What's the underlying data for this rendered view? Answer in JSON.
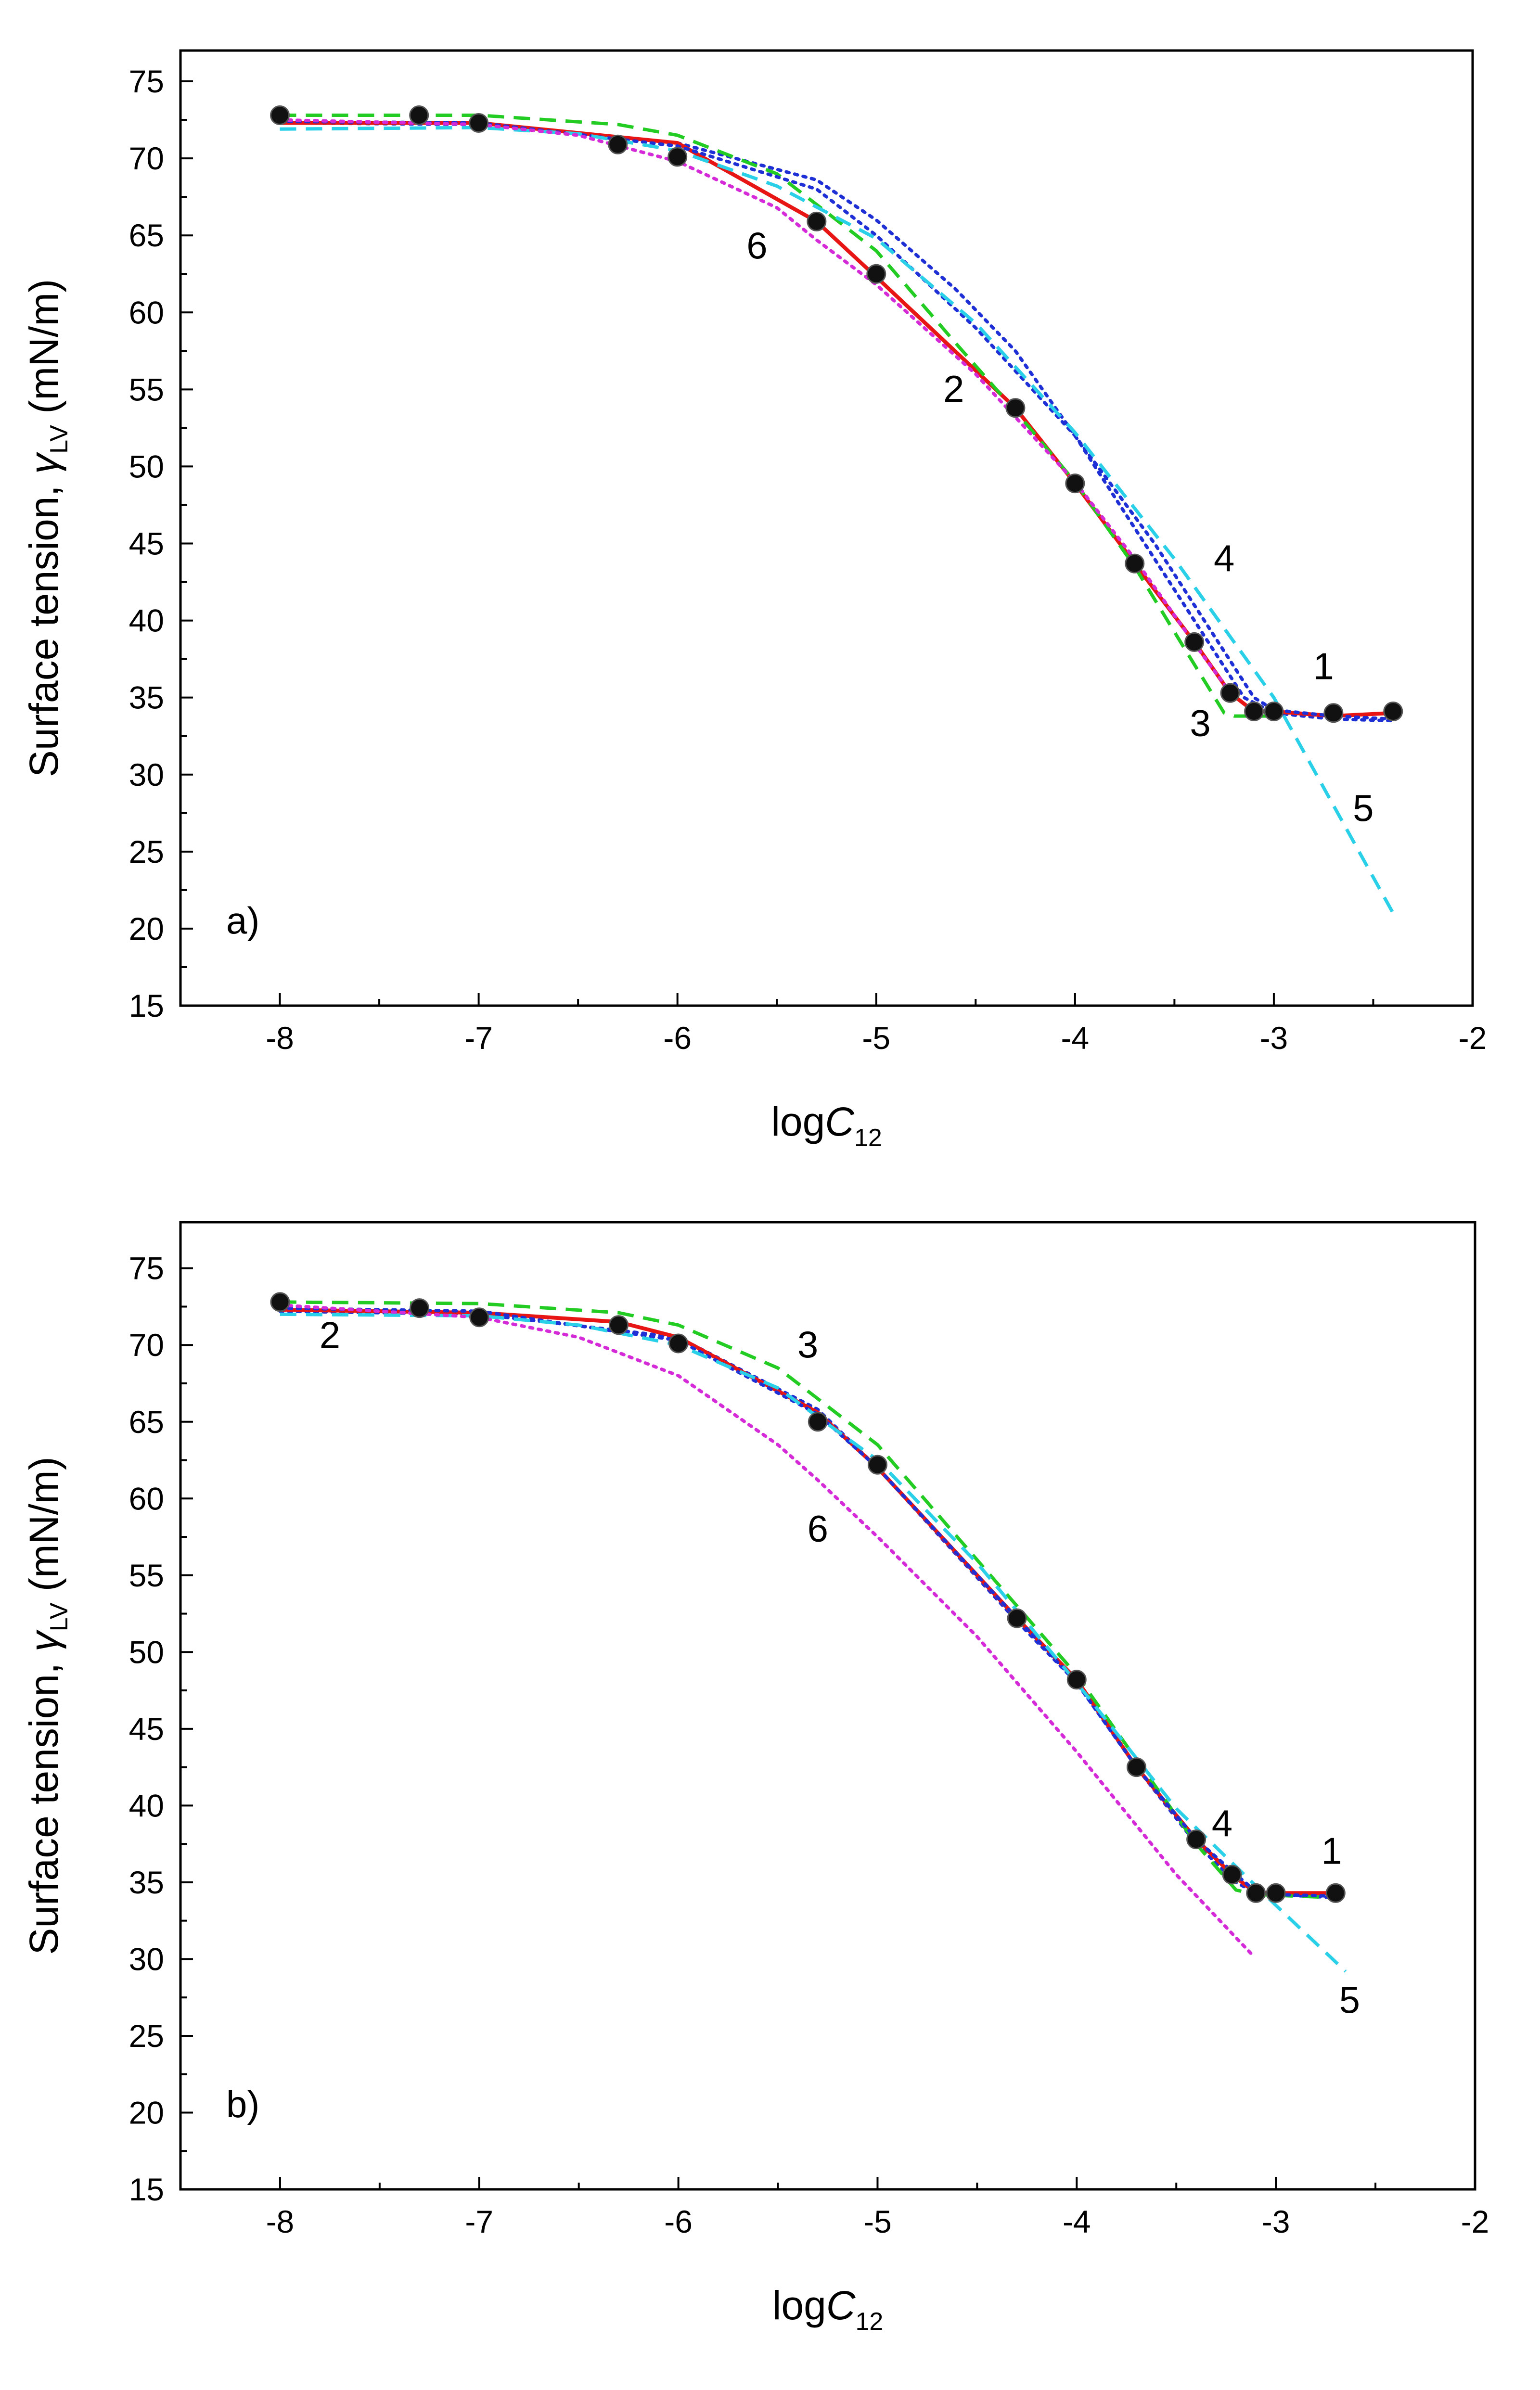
{
  "chart_data": [
    {
      "type": "line",
      "panel_label": "a)",
      "xlabel_main": "log",
      "xlabel_var": "C",
      "xlabel_sub": "12",
      "ylabel_main": "Surface tension, ",
      "ylabel_var": "γ",
      "ylabel_sub": "LV",
      "ylabel_unit": " (mN/m)",
      "xlim": [
        -8.5,
        -2
      ],
      "ylim": [
        15,
        77
      ],
      "x_ticks": [
        -8,
        -7,
        -6,
        -5,
        -4,
        -3,
        -2
      ],
      "x_tick_labels": [
        "-8",
        "-7",
        "-6",
        "-5",
        "-4",
        "-3",
        "-2"
      ],
      "y_ticks": [
        15,
        20,
        25,
        30,
        35,
        40,
        45,
        50,
        55,
        60,
        65,
        70,
        75
      ],
      "y_tick_labels": [
        "15",
        "20",
        "25",
        "30",
        "35",
        "40",
        "45",
        "50",
        "55",
        "60",
        "65",
        "70",
        "75"
      ],
      "points": [
        {
          "x": -8.0,
          "y": 72.8
        },
        {
          "x": -7.3,
          "y": 72.8
        },
        {
          "x": -7.0,
          "y": 72.3
        },
        {
          "x": -6.3,
          "y": 70.9
        },
        {
          "x": -6.0,
          "y": 70.1
        },
        {
          "x": -5.3,
          "y": 65.9
        },
        {
          "x": -5.0,
          "y": 62.5
        },
        {
          "x": -4.3,
          "y": 53.8
        },
        {
          "x": -4.0,
          "y": 48.9
        },
        {
          "x": -3.7,
          "y": 43.7
        },
        {
          "x": -3.4,
          "y": 38.6
        },
        {
          "x": -3.22,
          "y": 35.3
        },
        {
          "x": -3.1,
          "y": 34.1
        },
        {
          "x": -3.0,
          "y": 34.1
        },
        {
          "x": -2.7,
          "y": 34.0
        },
        {
          "x": -2.4,
          "y": 34.1
        }
      ],
      "series": [
        {
          "name": "1",
          "color": "#1f2fd6",
          "style": "dotted",
          "x": [
            -8,
            -7,
            -6,
            -5.3,
            -5,
            -4.6,
            -4.3,
            -4.0,
            -3.7,
            -3.4,
            -3.15,
            -3.0,
            -2.7,
            -2.4
          ],
          "y": [
            72.3,
            72.2,
            71.0,
            68.6,
            66.0,
            61.5,
            57.5,
            52.0,
            46.0,
            40.0,
            35.0,
            34.0,
            33.6,
            33.5
          ]
        },
        {
          "name": "2",
          "color": "#e81515",
          "style": "solid",
          "x": [
            -8,
            -7,
            -6,
            -5.3,
            -5,
            -4.3,
            -4,
            -3.7,
            -3.4,
            -3.22,
            -3.1,
            -3.0,
            -2.7,
            -2.4
          ],
          "y": [
            72.3,
            72.3,
            71.0,
            65.9,
            62.3,
            53.8,
            48.9,
            43.7,
            38.6,
            35.3,
            34.1,
            34.1,
            33.8,
            34.0
          ]
        },
        {
          "name": "3",
          "color": "#22cc22",
          "style": "dashed",
          "x": [
            -8,
            -7,
            -6.3,
            -6,
            -5.5,
            -5.0,
            -4.6,
            -4.3,
            -4.0,
            -3.7,
            -3.45,
            -3.25,
            -3.2,
            -3.0
          ],
          "y": [
            72.8,
            72.8,
            72.2,
            71.5,
            69.0,
            64.0,
            58.0,
            53.6,
            49.0,
            43.5,
            38.2,
            34.0,
            33.8,
            33.8
          ]
        },
        {
          "name": "4",
          "color": "#1f2fd6",
          "style": "dotted",
          "x": [
            -8,
            -7,
            -6,
            -5.3,
            -5,
            -4.5,
            -4,
            -3.6,
            -3.3,
            -3.1,
            -3.0,
            -2.7,
            -2.4
          ],
          "y": [
            72.4,
            72.3,
            70.8,
            68.0,
            65.0,
            59.0,
            52.0,
            45.0,
            39.0,
            35.0,
            34.2,
            33.8,
            33.6
          ]
        },
        {
          "name": "5",
          "color": "#2ad0e8",
          "style": "dashed",
          "x": [
            -8,
            -7,
            -6.5,
            -6,
            -5.5,
            -5,
            -4.5,
            -4,
            -3.5,
            -3,
            -2.7,
            -2.4
          ],
          "y": [
            71.9,
            72.0,
            71.6,
            70.5,
            68.2,
            64.8,
            59.3,
            52.2,
            44.0,
            35.0,
            28.0,
            21.0
          ]
        },
        {
          "name": "6",
          "color": "#d42ad8",
          "style": "dotted",
          "x": [
            -8,
            -7,
            -6.5,
            -6,
            -5.5,
            -5.3,
            -5,
            -4.5,
            -4,
            -3.7,
            -3.4,
            -3.2
          ],
          "y": [
            72.5,
            72.2,
            71.5,
            69.8,
            66.8,
            64.7,
            61.8,
            56.0,
            49.0,
            44.0,
            38.5,
            35.0
          ]
        }
      ],
      "curve_labels": [
        {
          "text": "1",
          "x": -2.75,
          "y": 36.2
        },
        {
          "text": "2",
          "x": -4.61,
          "y": 54.2
        },
        {
          "text": "3",
          "x": -3.37,
          "y": 32.5
        },
        {
          "text": "4",
          "x": -3.25,
          "y": 43.2
        },
        {
          "text": "5",
          "x": -2.55,
          "y": 27.0
        },
        {
          "text": "6",
          "x": -5.6,
          "y": 63.5
        }
      ]
    },
    {
      "type": "line",
      "panel_label": "b)",
      "xlabel_main": "log",
      "xlabel_var": "C",
      "xlabel_sub": "12",
      "ylabel_main": "Surface tension, ",
      "ylabel_var": "γ",
      "ylabel_sub": "LV",
      "ylabel_unit": " (mN/m)",
      "xlim": [
        -8.5,
        -2
      ],
      "ylim": [
        15,
        78
      ],
      "x_ticks": [
        -8,
        -7,
        -6,
        -5,
        -4,
        -3,
        -2
      ],
      "x_tick_labels": [
        "-8",
        "-7",
        "-6",
        "-5",
        "-4",
        "-3",
        "-2"
      ],
      "y_ticks": [
        15,
        20,
        25,
        30,
        35,
        40,
        45,
        50,
        55,
        60,
        65,
        70,
        75
      ],
      "y_tick_labels": [
        "15",
        "20",
        "25",
        "30",
        "35",
        "40",
        "45",
        "50",
        "55",
        "60",
        "65",
        "70",
        "75"
      ],
      "points": [
        {
          "x": -8.0,
          "y": 72.8
        },
        {
          "x": -7.3,
          "y": 72.4
        },
        {
          "x": -7.0,
          "y": 71.8
        },
        {
          "x": -6.3,
          "y": 71.3
        },
        {
          "x": -6.0,
          "y": 70.1
        },
        {
          "x": -5.3,
          "y": 65.0
        },
        {
          "x": -5.0,
          "y": 62.2
        },
        {
          "x": -4.3,
          "y": 52.2
        },
        {
          "x": -4.0,
          "y": 48.2
        },
        {
          "x": -3.7,
          "y": 42.5
        },
        {
          "x": -3.4,
          "y": 37.8
        },
        {
          "x": -3.22,
          "y": 35.5
        },
        {
          "x": -3.1,
          "y": 34.3
        },
        {
          "x": -3.0,
          "y": 34.3
        },
        {
          "x": -2.7,
          "y": 34.3
        }
      ],
      "series": [
        {
          "name": "1",
          "color": "#1f2fd6",
          "style": "dotted",
          "x": [
            -8,
            -7,
            -6,
            -5.3,
            -5,
            -4.3,
            -4,
            -3.7,
            -3.4,
            -3.2,
            -3.1,
            -3.0,
            -2.7
          ],
          "y": [
            72.2,
            72.0,
            70.5,
            65.8,
            62.0,
            52.0,
            48.0,
            42.5,
            37.5,
            35.0,
            34.3,
            34.2,
            34.0
          ]
        },
        {
          "name": "2",
          "color": "#e81515",
          "style": "solid",
          "x": [
            -8,
            -7,
            -6.3,
            -6,
            -5.3,
            -5,
            -4.3,
            -4,
            -3.7,
            -3.4,
            -3.22,
            -3.1,
            -3.0,
            -2.7
          ],
          "y": [
            72.3,
            72.1,
            71.5,
            70.5,
            65.6,
            62.0,
            52.2,
            48.2,
            42.5,
            37.8,
            35.5,
            34.3,
            34.3,
            34.3
          ]
        },
        {
          "name": "3",
          "color": "#22cc22",
          "style": "dashed",
          "x": [
            -8,
            -7,
            -6.3,
            -6,
            -5.5,
            -5,
            -4.5,
            -4,
            -3.7,
            -3.4,
            -3.2,
            -3.1,
            -2.7
          ],
          "y": [
            72.8,
            72.7,
            72.1,
            71.3,
            68.5,
            63.5,
            56.0,
            48.5,
            43.0,
            37.5,
            34.5,
            34.2,
            34.0
          ]
        },
        {
          "name": "4",
          "color": "#1f2fd6",
          "style": "dotted",
          "x": [
            -8,
            -7,
            -6,
            -5.3,
            -5,
            -4.5,
            -4,
            -3.7,
            -3.4,
            -3.2,
            -3.1,
            -3.0,
            -2.7
          ],
          "y": [
            72.4,
            72.2,
            70.3,
            65.5,
            62.0,
            55.0,
            48.0,
            42.5,
            37.8,
            35.5,
            34.4,
            34.2,
            34.1
          ]
        },
        {
          "name": "5",
          "color": "#2ad0e8",
          "style": "dashed",
          "x": [
            -8,
            -7,
            -6.5,
            -6,
            -5.5,
            -5,
            -4.5,
            -4,
            -3.5,
            -3,
            -2.65
          ],
          "y": [
            72.0,
            71.9,
            71.3,
            70.0,
            67.2,
            62.5,
            55.8,
            48.0,
            39.8,
            33.5,
            29.2
          ]
        },
        {
          "name": "6",
          "color": "#d42ad8",
          "style": "dotted",
          "x": [
            -8,
            -7,
            -6.5,
            -6,
            -5.5,
            -5.3,
            -5,
            -4.5,
            -4,
            -3.5,
            -3.12
          ],
          "y": [
            72.6,
            71.8,
            70.5,
            68.0,
            63.5,
            61.2,
            57.5,
            51.0,
            43.5,
            35.5,
            30.3
          ]
        }
      ],
      "curve_labels": [
        {
          "text": "1",
          "x": -2.72,
          "y": 36.2
        },
        {
          "text": "2",
          "x": -7.75,
          "y": 69.8
        },
        {
          "text": "3",
          "x": -5.35,
          "y": 69.2
        },
        {
          "text": "4",
          "x": -3.27,
          "y": 38.0
        },
        {
          "text": "5",
          "x": -2.63,
          "y": 26.5
        },
        {
          "text": "6",
          "x": -5.3,
          "y": 57.2
        }
      ]
    }
  ]
}
